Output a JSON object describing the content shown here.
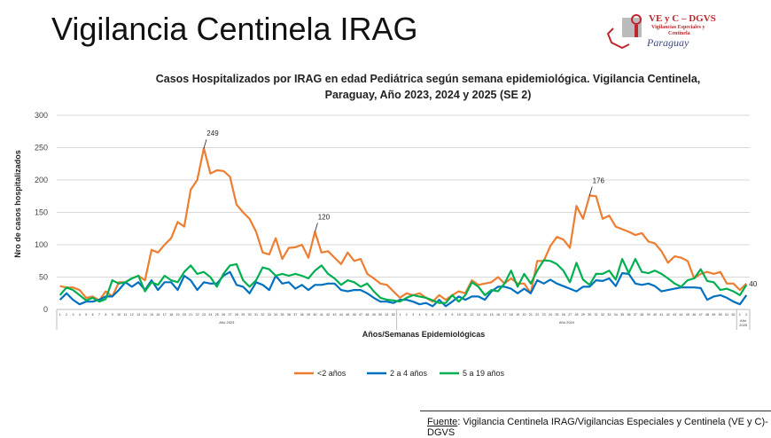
{
  "slide_title": "Vigilancia Centinela IRAG",
  "logo": {
    "line1": "VE y C – DGVS",
    "line2": "Vigilancias Especiales y",
    "line3": "Centinela",
    "line4": "Paraguay"
  },
  "source": {
    "label": "Fuente",
    "text": ": Vigilancia  Centinela IRAG/Vigilancias Especiales y Centinela (VE y C)-DGVS"
  },
  "chart_data": {
    "type": "line",
    "title_line1": "Casos Hospitalizados por IRAG en edad Pediátrica según semana epidemiológica. Vigilancia Centinela,",
    "title_line2": "Paraguay, Año 2023, 2024 y 2025 (SE 2)",
    "xlabel": "Años/Semanas Epidemiológicas",
    "ylabel": "Nro de casos hospitalizados",
    "ylim": [
      0,
      300
    ],
    "yticks": [
      0,
      50,
      100,
      150,
      200,
      250,
      300
    ],
    "grid": true,
    "legend_position": "bottom",
    "groups": [
      {
        "label": "Año 2023",
        "weeks": 52
      },
      {
        "label": "Año 2024",
        "weeks": 52
      },
      {
        "label": "Año 2025",
        "weeks": 2
      }
    ],
    "series": [
      {
        "name": "<2  años",
        "color": "#ED7D31",
        "values": [
          36,
          34,
          34,
          30,
          18,
          20,
          14,
          28,
          20,
          42,
          42,
          48,
          52,
          45,
          92,
          88,
          100,
          110,
          135,
          128,
          185,
          200,
          249,
          210,
          215,
          214,
          205,
          162,
          150,
          140,
          120,
          88,
          85,
          110,
          78,
          95,
          96,
          100,
          80,
          120,
          88,
          90,
          80,
          70,
          88,
          75,
          78,
          55,
          48,
          40,
          38,
          28,
          18,
          25,
          22,
          25,
          18,
          12,
          22,
          15,
          22,
          28,
          25,
          45,
          38,
          40,
          42,
          50,
          40,
          48,
          40,
          40,
          25,
          75,
          75,
          98,
          112,
          108,
          95,
          160,
          140,
          176,
          175,
          140,
          145,
          128,
          124,
          120,
          115,
          118,
          105,
          102,
          90,
          72,
          82,
          80,
          75,
          48,
          55,
          58,
          55,
          58,
          40,
          40,
          30,
          40
        ]
      },
      {
        "name": "2 a 4 años",
        "color": "#0070C0",
        "values": [
          15,
          25,
          15,
          8,
          12,
          12,
          15,
          20,
          20,
          30,
          42,
          35,
          42,
          30,
          45,
          30,
          42,
          42,
          30,
          52,
          45,
          30,
          42,
          40,
          40,
          52,
          58,
          38,
          35,
          25,
          42,
          38,
          30,
          52,
          40,
          42,
          32,
          38,
          30,
          38,
          38,
          40,
          40,
          30,
          28,
          30,
          30,
          25,
          18,
          12,
          12,
          10,
          15,
          15,
          12,
          8,
          10,
          5,
          15,
          5,
          12,
          20,
          15,
          20,
          20,
          15,
          28,
          35,
          35,
          32,
          25,
          32,
          25,
          45,
          40,
          46,
          40,
          36,
          32,
          28,
          35,
          35,
          45,
          44,
          48,
          36,
          56,
          55,
          40,
          38,
          40,
          36,
          28,
          30,
          32,
          34,
          34,
          34,
          33,
          15,
          20,
          22,
          18,
          12,
          8,
          22
        ]
      },
      {
        "name": "5 a 19 años",
        "color": "#00B050",
        "values": [
          22,
          34,
          30,
          22,
          14,
          18,
          12,
          16,
          45,
          40,
          42,
          48,
          52,
          28,
          42,
          38,
          52,
          45,
          42,
          58,
          68,
          55,
          58,
          50,
          35,
          55,
          68,
          70,
          45,
          35,
          45,
          65,
          62,
          52,
          55,
          52,
          55,
          52,
          48,
          60,
          68,
          55,
          48,
          38,
          45,
          42,
          35,
          40,
          28,
          18,
          15,
          14,
          12,
          18,
          22,
          20,
          18,
          14,
          10,
          10,
          22,
          12,
          22,
          42,
          35,
          22,
          30,
          28,
          40,
          60,
          35,
          55,
          40,
          60,
          76,
          75,
          70,
          60,
          42,
          72,
          46,
          38,
          55,
          55,
          60,
          46,
          78,
          56,
          78,
          58,
          56,
          60,
          55,
          48,
          40,
          35,
          45,
          48,
          62,
          44,
          42,
          30,
          32,
          28,
          22,
          38
        ]
      }
    ],
    "annotations": [
      {
        "series": 0,
        "index": 22,
        "text": "249"
      },
      {
        "series": 0,
        "index": 39,
        "text": "120"
      },
      {
        "series": 0,
        "index": 81,
        "text": "176"
      },
      {
        "series": 0,
        "index": 105,
        "text": "40"
      }
    ]
  }
}
